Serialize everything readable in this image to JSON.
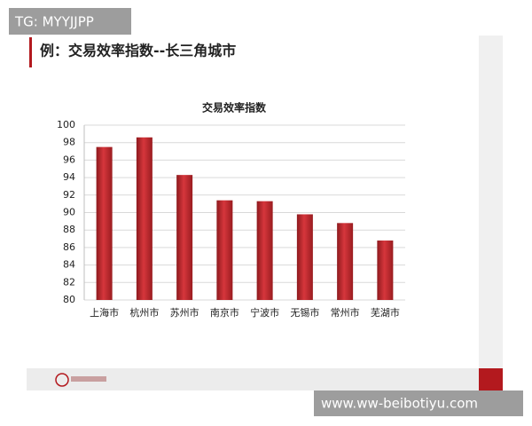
{
  "watermark_top": "TG: MYYJJPP",
  "heading": "例：交易效率指数--长三角城市",
  "watermark_bottom": "www.ww-beibotiyu.com",
  "chart_data": {
    "type": "bar",
    "title": "交易效率指数",
    "categories": [
      "上海市",
      "杭州市",
      "苏州市",
      "南京市",
      "宁波市",
      "无锡市",
      "常州市",
      "芜湖市"
    ],
    "values": [
      97.5,
      98.6,
      94.3,
      91.4,
      91.3,
      89.8,
      88.8,
      86.8
    ],
    "color": "#c0272d",
    "ylim": [
      80,
      100
    ],
    "yticks": [
      80,
      82,
      84,
      86,
      88,
      90,
      92,
      94,
      96,
      98,
      100
    ],
    "grid": true
  }
}
